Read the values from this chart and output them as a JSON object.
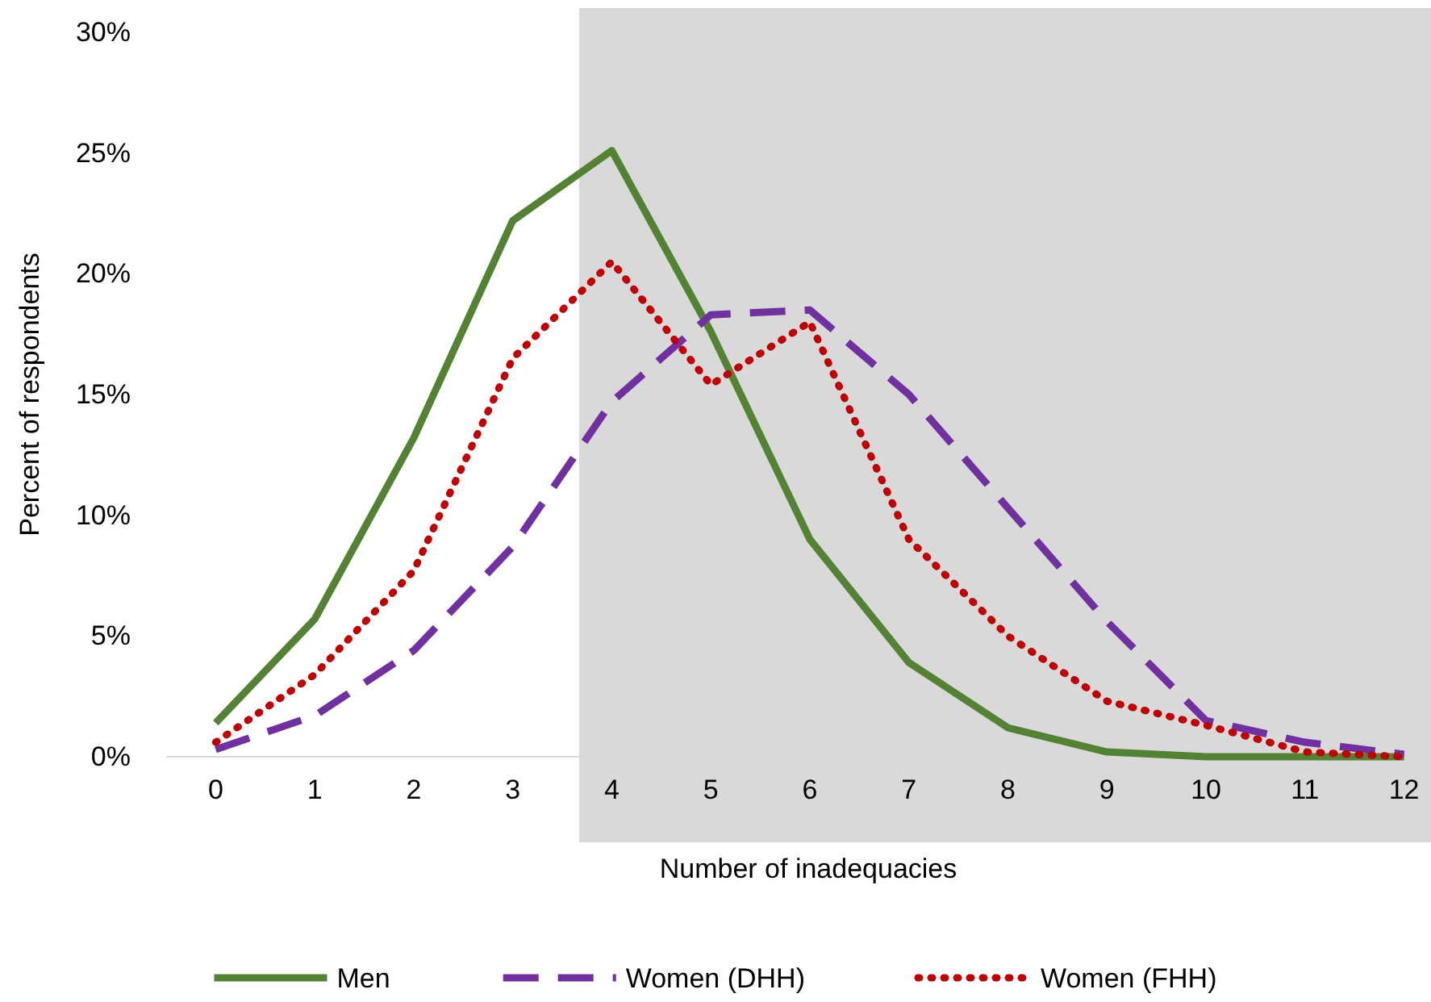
{
  "chart_data": {
    "type": "line",
    "xlabel": "Number of inadequacies",
    "ylabel": "Percent of respondents",
    "x": [
      0,
      1,
      2,
      3,
      4,
      5,
      6,
      7,
      8,
      9,
      10,
      11,
      12
    ],
    "xlim": [
      -0.5,
      12.5
    ],
    "xticks": [
      0,
      1,
      2,
      3,
      4,
      5,
      6,
      7,
      8,
      9,
      10,
      11,
      12
    ],
    "ylim": [
      0,
      30
    ],
    "yticks": [
      {
        "value": 0,
        "label": "0%"
      },
      {
        "value": 5,
        "label": "5%"
      },
      {
        "value": 10,
        "label": "10%"
      },
      {
        "value": 15,
        "label": "15%"
      },
      {
        "value": 20,
        "label": "20%"
      },
      {
        "value": 25,
        "label": "25%"
      },
      {
        "value": 30,
        "label": "30%"
      }
    ],
    "grid": false,
    "legend": "bottom",
    "marker": "none",
    "bands": [
      {
        "axis": "x",
        "from": 3.67,
        "to": 12.5,
        "color": "#d9d9d9"
      }
    ],
    "series": [
      {
        "name": "Men",
        "color": "#548235",
        "line_style": "solid",
        "values": [
          1.4,
          5.7,
          13.2,
          22.2,
          25.1,
          17.6,
          9.0,
          3.9,
          1.2,
          0.2,
          0,
          0,
          0
        ]
      },
      {
        "name": "Women (DHH)",
        "color": "#7030a0",
        "line_style": "dashed",
        "values": [
          0.3,
          1.7,
          4.4,
          8.7,
          14.7,
          18.3,
          18.5,
          15.0,
          10.3,
          5.6,
          1.5,
          0.6,
          0.1
        ]
      },
      {
        "name": "Women (FHH)",
        "color": "#c00000",
        "line_style": "dotted",
        "values": [
          0.6,
          3.4,
          7.7,
          16.5,
          20.5,
          15.4,
          18.0,
          9.0,
          5.0,
          2.3,
          1.3,
          0.2,
          0
        ]
      }
    ]
  }
}
